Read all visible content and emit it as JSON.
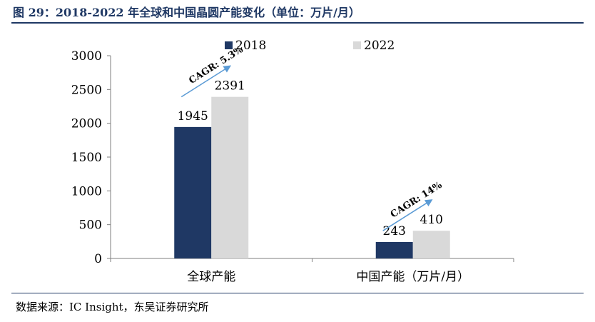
{
  "figure": {
    "title": "图 29：2018-2022 年全球和中国晶圆产能变化（单位：万片/月）",
    "source": "数据来源：IC Insight，东吴证券研究所"
  },
  "colors": {
    "series_2018": "#1f3864",
    "series_2022": "#d9d9d9",
    "title": "#1f3864",
    "arrow": "#5b9bd5"
  },
  "chart_data": {
    "type": "bar",
    "categories": [
      "全球产能",
      "中国产能（万片/月）"
    ],
    "series": [
      {
        "name": "2018",
        "values": [
          1945,
          243
        ]
      },
      {
        "name": "2022",
        "values": [
          2391,
          410
        ]
      }
    ],
    "ylim": [
      0,
      3000
    ],
    "yticks": [
      0,
      500,
      1000,
      1500,
      2000,
      2500,
      3000
    ],
    "grid": false,
    "legend": "top",
    "annotations": [
      {
        "text": "CAGR: 5.3%",
        "category": 0
      },
      {
        "text": "CAGR: 14%",
        "category": 1
      }
    ]
  }
}
